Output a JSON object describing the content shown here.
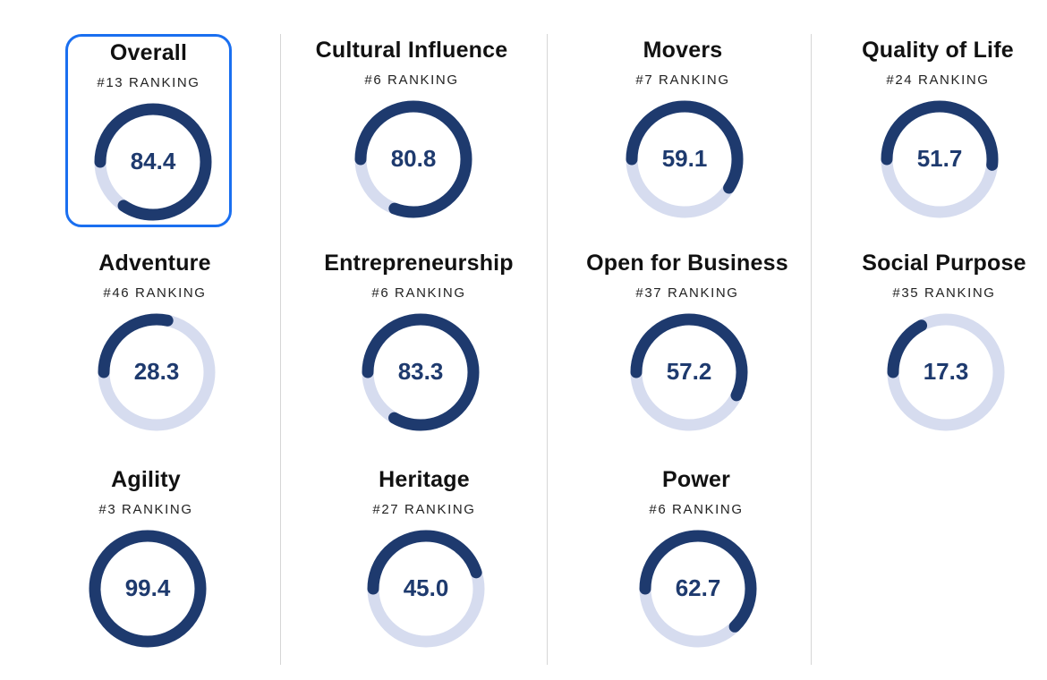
{
  "colors": {
    "track": "#d6dcef",
    "fill": "#1e3a6e",
    "selected_border": "#1a6ff0"
  },
  "selected_metric": "Overall",
  "chart_data": {
    "type": "radial-gauge",
    "scale": [
      0,
      100
    ],
    "metrics": [
      {
        "name": "Overall",
        "ranking": "#13 RANKING",
        "value": 84.4,
        "value_label": "84.4"
      },
      {
        "name": "Cultural Influence",
        "ranking": "#6 RANKING",
        "value": 80.8,
        "value_label": "80.8"
      },
      {
        "name": "Movers",
        "ranking": "#7 RANKING",
        "value": 59.1,
        "value_label": "59.1"
      },
      {
        "name": "Quality of Life",
        "ranking": "#24 RANKING",
        "value": 51.7,
        "value_label": "51.7"
      },
      {
        "name": "Adventure",
        "ranking": "#46 RANKING",
        "value": 28.3,
        "value_label": "28.3"
      },
      {
        "name": "Entrepreneurship",
        "ranking": "#6 RANKING",
        "value": 83.3,
        "value_label": "83.3"
      },
      {
        "name": "Open for Business",
        "ranking": "#37 RANKING",
        "value": 57.2,
        "value_label": "57.2"
      },
      {
        "name": "Social Purpose",
        "ranking": "#35 RANKING",
        "value": 17.3,
        "value_label": "17.3"
      },
      {
        "name": "Agility",
        "ranking": "#3 RANKING",
        "value": 99.4,
        "value_label": "99.4"
      },
      {
        "name": "Heritage",
        "ranking": "#27 RANKING",
        "value": 45.0,
        "value_label": "45.0"
      },
      {
        "name": "Power",
        "ranking": "#6 RANKING",
        "value": 62.7,
        "value_label": "62.7"
      }
    ]
  }
}
